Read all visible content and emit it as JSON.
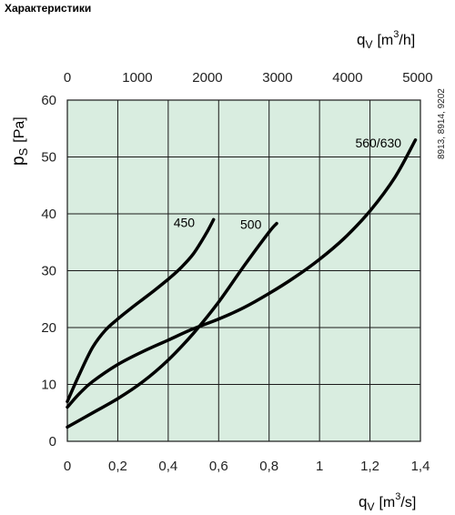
{
  "page": {
    "title": "Характеристики"
  },
  "side_note": "8913, 8914, 9202",
  "colors": {
    "plot_background": "#d9ede0",
    "grid": "#1a1a1a",
    "curve": "#000000"
  },
  "chart_data": {
    "type": "line",
    "grid": true,
    "x": {
      "var": "q",
      "sub": "V",
      "unit_pre": "[m",
      "unit_sup": "3",
      "unit_post": "/s]",
      "lim": [
        0,
        1.4
      ],
      "ticks": [
        0,
        0.2,
        0.4,
        0.6,
        0.8,
        1.0,
        1.2,
        1.4
      ],
      "tick_labels": [
        "0",
        "0,2",
        "0,4",
        "0,6",
        "0,8",
        "1",
        "1,2",
        "1,4"
      ]
    },
    "x2": {
      "var": "q",
      "sub": "V",
      "unit_pre": "[m",
      "unit_sup": "3",
      "unit_post": "/h]",
      "lim": [
        0,
        5040
      ],
      "ticks": [
        0,
        1000,
        2000,
        3000,
        4000,
        5000
      ],
      "tick_labels": [
        "0",
        "1000",
        "2000",
        "3000",
        "4000",
        "5000"
      ]
    },
    "y": {
      "var": "p",
      "sub": "S",
      "unit": "[Pa]",
      "lim": [
        0,
        60
      ],
      "ticks": [
        0,
        10,
        20,
        30,
        40,
        50,
        60
      ],
      "tick_labels": [
        "0",
        "10",
        "20",
        "30",
        "40",
        "50",
        "60"
      ]
    },
    "series": [
      {
        "name": "450",
        "x": [
          0,
          0.05,
          0.1,
          0.15,
          0.2,
          0.25,
          0.3,
          0.35,
          0.4,
          0.45,
          0.5,
          0.55,
          0.58
        ],
        "y": [
          7,
          12,
          16.5,
          19.5,
          21.5,
          23.3,
          25,
          26.7,
          28.5,
          30.5,
          33,
          36.5,
          39
        ]
      },
      {
        "name": "500",
        "x": [
          0,
          0.1,
          0.2,
          0.3,
          0.4,
          0.5,
          0.6,
          0.7,
          0.8,
          0.83
        ],
        "y": [
          2.5,
          5,
          7.5,
          10.5,
          14.3,
          19,
          24.5,
          30.8,
          36.8,
          38.3
        ]
      },
      {
        "name": "560/630",
        "x": [
          0,
          0.05,
          0.1,
          0.2,
          0.3,
          0.4,
          0.5,
          0.6,
          0.7,
          0.8,
          0.9,
          1.0,
          1.1,
          1.2,
          1.3,
          1.38
        ],
        "y": [
          6,
          8.5,
          10.5,
          13.5,
          15.8,
          17.8,
          19.8,
          21.5,
          23.5,
          26,
          28.8,
          32,
          35.8,
          40.5,
          46.5,
          53
        ]
      }
    ]
  }
}
